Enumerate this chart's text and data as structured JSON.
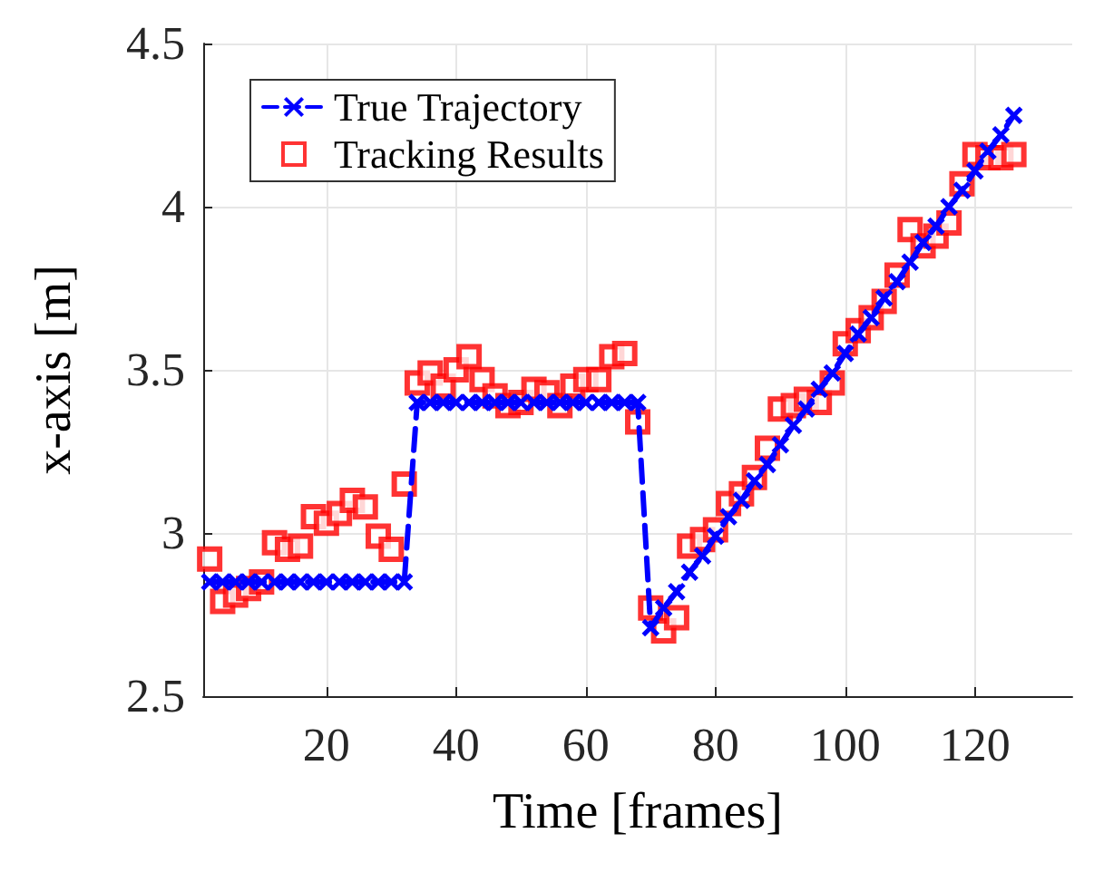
{
  "chart_data": {
    "type": "line",
    "xlabel": "Time [frames]",
    "ylabel": "x-axis [m]",
    "x": [
      2,
      4,
      6,
      8,
      10,
      12,
      14,
      16,
      18,
      20,
      22,
      24,
      26,
      28,
      30,
      32,
      34,
      36,
      38,
      40,
      42,
      44,
      46,
      48,
      50,
      52,
      54,
      56,
      58,
      60,
      62,
      64,
      66,
      68,
      70,
      72,
      74,
      76,
      78,
      80,
      82,
      84,
      86,
      88,
      90,
      92,
      94,
      96,
      98,
      100,
      102,
      104,
      106,
      108,
      110,
      112,
      114,
      116,
      118,
      120,
      122,
      124,
      126
    ],
    "series": [
      {
        "name": "True Trajectory",
        "color": "#0000ff",
        "marker": "cross",
        "line_style": "dashed",
        "values": [
          2.85,
          2.85,
          2.85,
          2.85,
          2.85,
          2.85,
          2.85,
          2.85,
          2.85,
          2.85,
          2.85,
          2.85,
          2.85,
          2.85,
          2.85,
          2.85,
          3.4,
          3.4,
          3.4,
          3.4,
          3.4,
          3.4,
          3.4,
          3.4,
          3.4,
          3.4,
          3.4,
          3.4,
          3.4,
          3.4,
          3.4,
          3.4,
          3.4,
          3.4,
          2.71,
          2.77,
          2.82,
          2.88,
          2.93,
          2.99,
          3.05,
          3.1,
          3.16,
          3.21,
          3.27,
          3.33,
          3.38,
          3.44,
          3.49,
          3.55,
          3.61,
          3.66,
          3.72,
          3.77,
          3.83,
          3.89,
          3.94,
          4.0,
          4.05,
          4.11,
          4.17,
          4.22,
          4.28
        ]
      },
      {
        "name": "Tracking Results",
        "type": "scatter",
        "color": "#ff0000",
        "marker": "square",
        "values": [
          2.92,
          2.79,
          2.81,
          2.83,
          2.85,
          2.97,
          2.95,
          2.96,
          3.05,
          3.03,
          3.06,
          3.1,
          3.08,
          2.99,
          2.95,
          3.15,
          3.46,
          3.49,
          3.45,
          3.5,
          3.54,
          3.47,
          3.42,
          3.39,
          3.4,
          3.44,
          3.43,
          3.39,
          3.45,
          3.47,
          3.47,
          3.54,
          3.55,
          3.34,
          2.77,
          2.7,
          2.74,
          2.96,
          2.98,
          3.01,
          3.09,
          3.12,
          3.17,
          3.26,
          3.38,
          3.39,
          3.41,
          3.4,
          3.46,
          3.58,
          3.62,
          3.66,
          3.71,
          3.79,
          3.93,
          3.88,
          3.91,
          3.95,
          4.07,
          4.16,
          4.15,
          4.15,
          4.16
        ]
      }
    ],
    "xlim": [
      1,
      135
    ],
    "xticks": [
      20,
      40,
      60,
      80,
      100,
      120
    ],
    "ylim": [
      2.5,
      4.5
    ],
    "yticks": [
      2.5,
      3,
      3.5,
      4,
      4.5
    ],
    "grid": true,
    "legend": "top left"
  }
}
